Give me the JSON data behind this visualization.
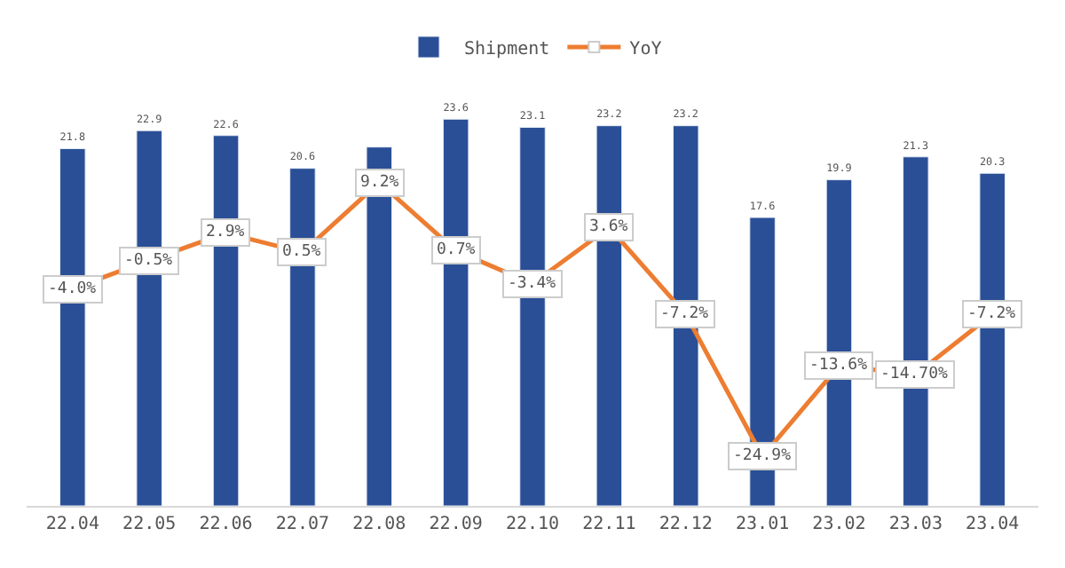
{
  "chart_data": {
    "type": "bar",
    "categories": [
      "22.04",
      "22.05",
      "22.06",
      "22.07",
      "22.08",
      "22.09",
      "22.10",
      "22.11",
      "22.12",
      "23.01",
      "23.02",
      "23.03",
      "23.04"
    ],
    "series": [
      {
        "name": "Shipment",
        "color": "#2a4f96",
        "values": [
          21.8,
          22.9,
          22.6,
          20.6,
          21.9,
          23.6,
          23.1,
          23.2,
          23.2,
          17.6,
          19.9,
          21.3,
          20.3
        ],
        "value_labels": [
          "21.8",
          "22.9",
          "22.6",
          "20.6",
          null,
          "23.6",
          "23.1",
          "23.2",
          "23.2",
          "17.6",
          "19.9",
          "21.3",
          "20.3"
        ]
      },
      {
        "name": "YoY",
        "type": "line",
        "axis": "y2",
        "color": "#ed7d31",
        "marker": "square",
        "values": [
          -4.0,
          -0.5,
          2.9,
          0.5,
          9.2,
          0.7,
          -3.4,
          3.6,
          -7.2,
          -24.9,
          -13.6,
          -14.7,
          -7.2
        ],
        "value_labels": [
          "-4.0%",
          "-0.5%",
          "2.9%",
          "0.5%",
          "9.2%",
          "0.7%",
          "-3.4%",
          "3.6%",
          "-7.2%",
          "-24.9%",
          "-13.6%",
          "-14.70%",
          "-7.2%"
        ]
      }
    ],
    "legend": "top"
  }
}
